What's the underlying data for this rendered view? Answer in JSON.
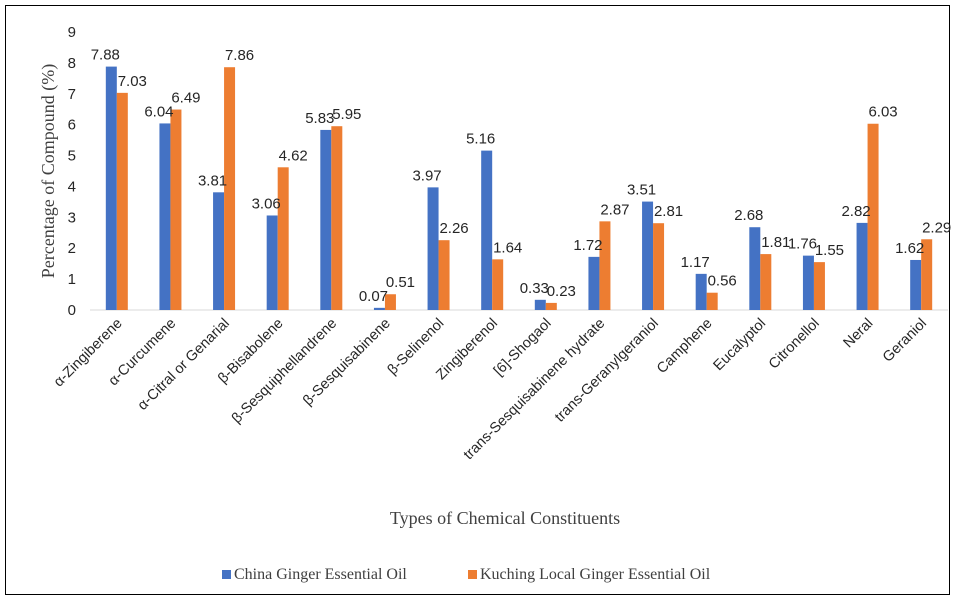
{
  "chart_data": {
    "type": "bar",
    "categories": [
      "α-Zingiberene",
      "α-Curcumene",
      "α-Citral or Genarial",
      "β-Bisabolene",
      "β-Sesquiphellandrene",
      "β-Sesquisabinene",
      "β-Selinenol",
      "Zingiberenol",
      "[6]-Shogaol",
      "trans-Sesquisabinene hydrate",
      "trans-Geranylgeraniol",
      "Camphene",
      "Eucalyptol",
      "Citronellol",
      "Neral",
      "Geraniol"
    ],
    "series": [
      {
        "name": "China Ginger Essential Oil",
        "color": "#4472C4",
        "values": [
          7.88,
          6.04,
          3.81,
          3.06,
          5.83,
          0.07,
          3.97,
          5.16,
          0.33,
          1.72,
          3.51,
          1.17,
          2.68,
          1.76,
          2.82,
          1.62
        ]
      },
      {
        "name": "Kuching Local Ginger Essential Oil",
        "color": "#ED7D31",
        "values": [
          7.03,
          6.49,
          7.86,
          4.62,
          5.95,
          0.51,
          2.26,
          1.64,
          0.23,
          2.87,
          2.81,
          0.56,
          1.81,
          1.55,
          6.03,
          2.29
        ]
      }
    ],
    "xlabel": "Types of Chemical Constituents",
    "ylabel": "Percentage of Compound (%)",
    "ylim": [
      0,
      9
    ],
    "yticks": [
      0,
      1,
      2,
      3,
      4,
      5,
      6,
      7,
      8,
      9
    ],
    "grid": false,
    "legend": "bottom"
  }
}
